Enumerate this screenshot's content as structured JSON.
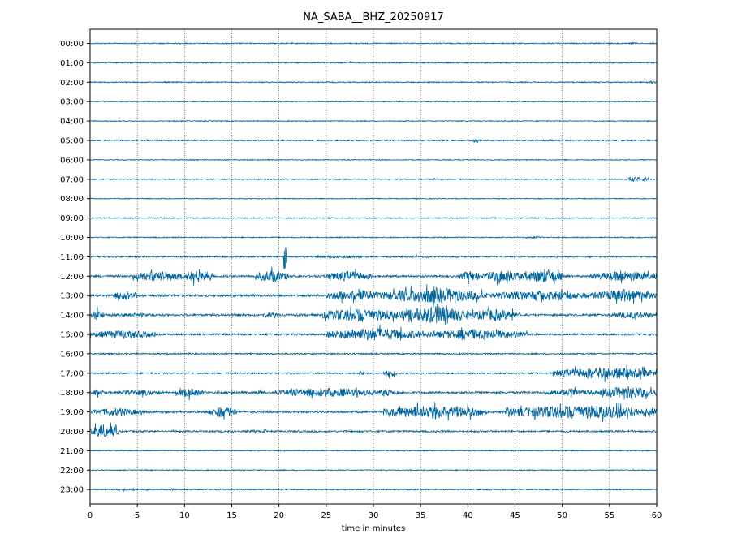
{
  "chart_data": {
    "type": "line",
    "title": "NA_SABA__BHZ_20250917",
    "xlabel": "time in minutes",
    "ylabel": "",
    "xlim": [
      0,
      60
    ],
    "x_ticks": [
      0,
      5,
      10,
      15,
      20,
      25,
      30,
      35,
      40,
      45,
      50,
      55,
      60
    ],
    "y_tick_labels": [
      "00:00",
      "01:00",
      "02:00",
      "03:00",
      "04:00",
      "05:00",
      "06:00",
      "07:00",
      "08:00",
      "09:00",
      "10:00",
      "11:00",
      "12:00",
      "13:00",
      "14:00",
      "15:00",
      "16:00",
      "17:00",
      "18:00",
      "19:00",
      "20:00",
      "21:00",
      "22:00",
      "23:00"
    ],
    "grid": "vertical dotted lines at x ticks",
    "trace_color": "#00669d",
    "series": [
      {
        "row": "00:00",
        "noise": 0.06,
        "bursts": [
          [
            57,
            58,
            0.15
          ]
        ]
      },
      {
        "row": "01:00",
        "noise": 0.06,
        "bursts": [
          [
            27,
            28,
            0.12
          ]
        ]
      },
      {
        "row": "02:00",
        "noise": 0.06,
        "bursts": [
          [
            59,
            60,
            0.15
          ]
        ]
      },
      {
        "row": "03:00",
        "noise": 0.05,
        "bursts": []
      },
      {
        "row": "04:00",
        "noise": 0.05,
        "bursts": []
      },
      {
        "row": "05:00",
        "noise": 0.07,
        "bursts": [
          [
            40.5,
            41.2,
            0.35
          ],
          [
            48,
            49,
            0.1
          ]
        ]
      },
      {
        "row": "06:00",
        "noise": 0.05,
        "bursts": []
      },
      {
        "row": "07:00",
        "noise": 0.06,
        "bursts": [
          [
            36,
            37,
            0.12
          ],
          [
            57,
            58.2,
            0.3
          ],
          [
            58.5,
            59.2,
            0.3
          ]
        ]
      },
      {
        "row": "08:00",
        "noise": 0.05,
        "bursts": []
      },
      {
        "row": "09:00",
        "noise": 0.06,
        "bursts": [
          [
            46.5,
            47,
            0.1
          ]
        ]
      },
      {
        "row": "10:00",
        "noise": 0.06,
        "bursts": [
          [
            46,
            48,
            0.15
          ]
        ]
      },
      {
        "row": "11:00",
        "noise": 0.08,
        "bursts": [
          [
            20.5,
            20.8,
            1.6
          ],
          [
            22,
            30,
            0.15
          ],
          [
            30,
            37,
            0.12
          ]
        ]
      },
      {
        "row": "12:00",
        "noise": 0.12,
        "bursts": [
          [
            4.5,
            10,
            0.6
          ],
          [
            10,
            13,
            0.8
          ],
          [
            17.5,
            21,
            0.7
          ],
          [
            25,
            30,
            0.6
          ],
          [
            39,
            41.5,
            0.6
          ],
          [
            41.5,
            46,
            0.7
          ],
          [
            46,
            50,
            0.85
          ],
          [
            53,
            60,
            0.6
          ]
        ]
      },
      {
        "row": "13:00",
        "noise": 0.12,
        "bursts": [
          [
            2.5,
            5,
            0.6
          ],
          [
            25,
            31,
            0.7
          ],
          [
            31,
            42,
            0.9
          ],
          [
            42,
            53,
            0.6
          ],
          [
            53,
            60,
            0.7
          ]
        ]
      },
      {
        "row": "14:00",
        "noise": 0.12,
        "bursts": [
          [
            0,
            1.5,
            0.6
          ],
          [
            2,
            7,
            0.2
          ],
          [
            18,
            20,
            0.3
          ],
          [
            24.5,
            33,
            0.8
          ],
          [
            33,
            40,
            1.0
          ],
          [
            40,
            45.5,
            0.7
          ],
          [
            55,
            60,
            0.4
          ]
        ]
      },
      {
        "row": "15:00",
        "noise": 0.1,
        "bursts": [
          [
            0,
            7,
            0.5
          ],
          [
            25,
            35,
            0.75
          ],
          [
            35,
            46.5,
            0.6
          ]
        ]
      },
      {
        "row": "16:00",
        "noise": 0.08,
        "bursts": []
      },
      {
        "row": "17:00",
        "noise": 0.08,
        "bursts": [
          [
            28.5,
            29,
            0.3
          ],
          [
            31,
            32.5,
            0.4
          ],
          [
            49,
            60,
            0.7
          ]
        ]
      },
      {
        "row": "18:00",
        "noise": 0.12,
        "bursts": [
          [
            0,
            1.5,
            0.35
          ],
          [
            3,
            8,
            0.35
          ],
          [
            9,
            12,
            0.5
          ],
          [
            17.5,
            18.5,
            0.35
          ],
          [
            19.5,
            30,
            0.55
          ],
          [
            30,
            33,
            0.4
          ],
          [
            48,
            54,
            0.4
          ],
          [
            54,
            60,
            0.75
          ]
        ]
      },
      {
        "row": "19:00",
        "noise": 0.12,
        "bursts": [
          [
            0,
            5.5,
            0.45
          ],
          [
            12.5,
            15.5,
            0.65
          ],
          [
            31,
            42,
            0.8
          ],
          [
            44,
            60,
            0.8
          ]
        ]
      },
      {
        "row": "20:00",
        "noise": 0.1,
        "bursts": [
          [
            0,
            3,
            0.8
          ],
          [
            3,
            29,
            0.12
          ],
          [
            18,
            19,
            0.2
          ]
        ]
      },
      {
        "row": "21:00",
        "noise": 0.05,
        "bursts": []
      },
      {
        "row": "22:00",
        "noise": 0.05,
        "bursts": []
      },
      {
        "row": "23:00",
        "noise": 0.06,
        "bursts": [
          [
            0,
            8,
            0.1
          ],
          [
            8.5,
            9,
            0.15
          ]
        ]
      }
    ]
  }
}
